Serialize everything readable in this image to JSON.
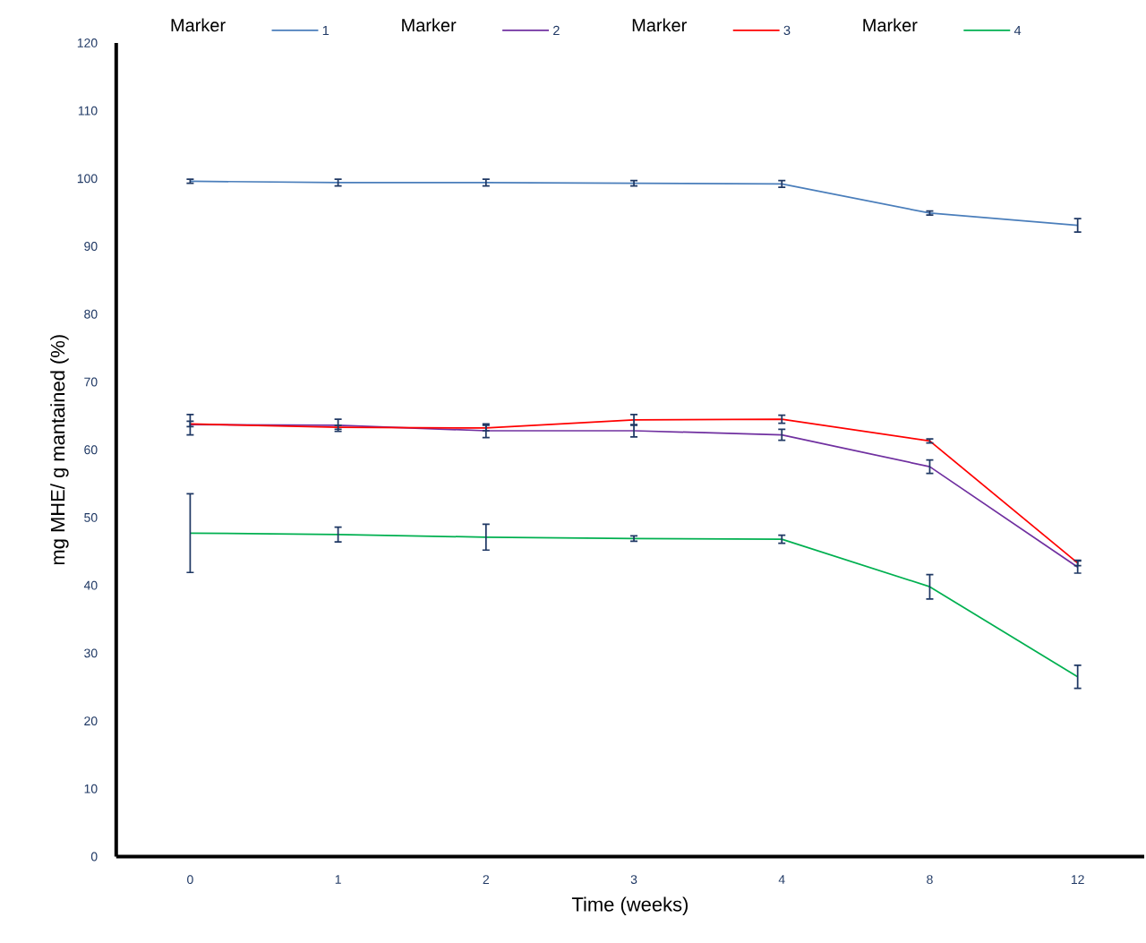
{
  "chart_data": {
    "type": "line",
    "xlabel": "Time (weeks)",
    "ylabel": "mg MHE/ g mantained (%)",
    "legend_title": "Marker",
    "categories": [
      "0",
      "1",
      "2",
      "3",
      "4",
      "8",
      "12"
    ],
    "series": [
      {
        "name": "1",
        "color": "#4a7ebb",
        "values": [
          99.6,
          99.4,
          99.4,
          99.3,
          99.2,
          94.9,
          93.1
        ],
        "errors": [
          0.3,
          0.5,
          0.5,
          0.4,
          0.5,
          0.3,
          1.0
        ]
      },
      {
        "name": "2",
        "color": "#7030a0",
        "values": [
          63.7,
          63.6,
          62.8,
          62.8,
          62.2,
          57.5,
          42.7
        ],
        "errors": [
          1.5,
          0.9,
          1.0,
          0.9,
          0.8,
          1.0,
          0.9
        ]
      },
      {
        "name": "3",
        "color": "#ff0000",
        "values": [
          63.8,
          63.3,
          63.2,
          64.4,
          64.5,
          61.3,
          43.3
        ],
        "errors": [
          0.4,
          0.3,
          0.4,
          0.8,
          0.6,
          0.3,
          0.4
        ]
      },
      {
        "name": "4",
        "color": "#00b050",
        "values": [
          47.7,
          47.5,
          47.1,
          46.9,
          46.8,
          39.8,
          26.5
        ],
        "errors": [
          5.8,
          1.1,
          1.9,
          0.4,
          0.6,
          1.8,
          1.7
        ]
      }
    ],
    "ylim": [
      0,
      120
    ],
    "yticks": [
      0,
      10,
      20,
      30,
      40,
      50,
      60,
      70,
      80,
      90,
      100,
      110,
      120
    ],
    "grid": false,
    "legend": "top",
    "line_style": "solid"
  }
}
